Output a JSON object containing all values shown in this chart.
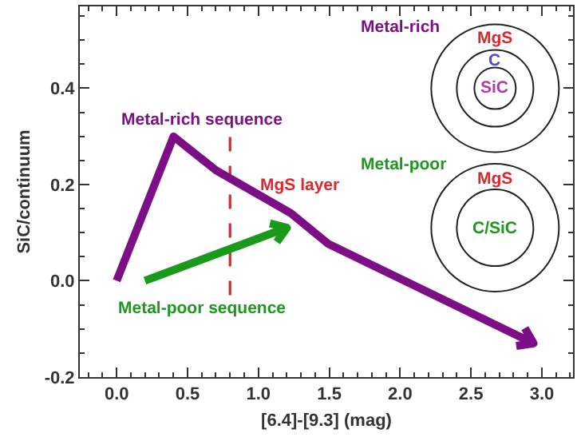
{
  "chart_data": {
    "type": "line",
    "xlabel": "[6.4]-[9.3] (mag)",
    "ylabel": "SiC/continuum",
    "xlim": [
      -0.26,
      3.22
    ],
    "xticks": [
      {
        "value": 0,
        "label": "0.0"
      },
      {
        "value": 0.5,
        "label": "0.5"
      },
      {
        "value": 1,
        "label": "1.0"
      },
      {
        "value": 1.5,
        "label": "1.5"
      },
      {
        "value": 2,
        "label": "2.0"
      },
      {
        "value": 2.5,
        "label": "2.5"
      },
      {
        "value": 3,
        "label": "3.0"
      }
    ],
    "ylim": [
      -0.2,
      0.57
    ],
    "yticks": [
      {
        "value": -0.2,
        "label": "-0.2"
      },
      {
        "value": 0,
        "label": "0.0"
      },
      {
        "value": 0.2,
        "label": "0.2"
      },
      {
        "value": 0.4,
        "label": "0.4"
      }
    ],
    "grid": false,
    "series": [
      {
        "color": "#e0262a",
        "line_style": "dashed",
        "x": [
          0.8,
          0.8
        ],
        "values": [
          -0.03,
          0.3
        ]
      }
    ],
    "annotations": [
      "Metal-rich sequence",
      "Metal-poor sequence",
      "MgS layer",
      "Metal-rich",
      "MgS",
      "C",
      "SiC",
      "Metal-poor",
      "MgS",
      "C/SiC"
    ]
  }
}
